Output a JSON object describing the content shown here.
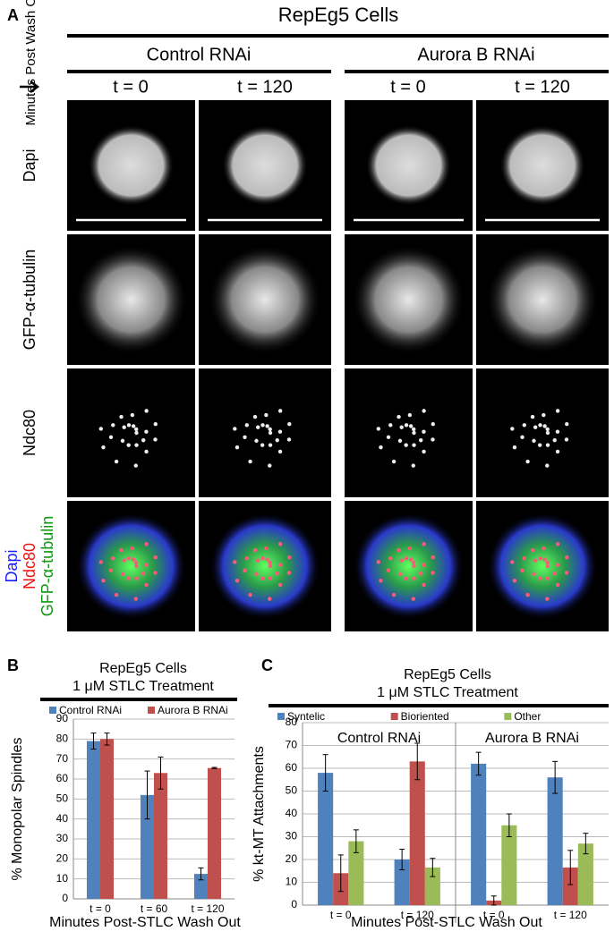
{
  "panel_a": {
    "label": "A",
    "title": "RepEg5 Cells",
    "conditions": [
      "Control RNAi",
      "Aurora B RNAi"
    ],
    "axis_label": "Minutes Post Wash Out",
    "timepoints": [
      "t = 0",
      "t = 120",
      "t = 0",
      "t = 120"
    ],
    "rows": [
      "Dapi",
      "GFP-α-tubulin",
      "Ndc80"
    ],
    "merge_labels": [
      "Dapi",
      "Ndc80",
      "GFP-α-tubulin"
    ]
  },
  "chart_data": [
    {
      "type": "bar",
      "label": "B",
      "title": "RepEg5 Cells",
      "subtitle": "1 μM STLC Treatment",
      "y_label": "% Monopolar Spindles",
      "x_label": "Minutes Post-STLC Wash Out",
      "categories": [
        "t = 0",
        "t = 60",
        "t = 120"
      ],
      "series": [
        {
          "name": "Control RNAi",
          "color": "#4f81bd",
          "values": [
            79,
            52,
            12.5
          ],
          "errors": [
            4,
            12,
            3
          ]
        },
        {
          "name": "Aurora B RNAi",
          "color": "#c0504d",
          "values": [
            80,
            63,
            65.5
          ],
          "errors": [
            3,
            8,
            0.3
          ]
        }
      ],
      "ylim": [
        0,
        90
      ],
      "yticks": [
        0,
        10,
        20,
        30,
        40,
        50,
        60,
        70,
        80,
        90
      ],
      "grid": true
    },
    {
      "type": "bar",
      "label": "C",
      "title": "RepEg5 Cells",
      "subtitle": "1 μM STLC Treatment",
      "y_label": "% kt-MT Attachments",
      "x_label": "Minutes Post-STLC Wash Out",
      "groups": [
        "Control RNAi",
        "Aurora B RNAi"
      ],
      "categories": [
        "t = 0",
        "t = 120",
        "t = 0",
        "t = 120"
      ],
      "series": [
        {
          "name": "Syntelic",
          "color": "#4f81bd",
          "values": [
            58,
            20,
            62,
            56
          ],
          "errors": [
            8,
            4.5,
            5,
            7
          ]
        },
        {
          "name": "Bioriented",
          "color": "#c0504d",
          "values": [
            14,
            63,
            2,
            16.5
          ],
          "errors": [
            8,
            8,
            2,
            7.5
          ]
        },
        {
          "name": "Other",
          "color": "#9bbb59",
          "values": [
            28,
            16.5,
            35,
            27
          ],
          "errors": [
            5,
            4,
            5,
            4.5
          ]
        }
      ],
      "ylim": [
        0,
        80
      ],
      "yticks": [
        0,
        10,
        20,
        30,
        40,
        50,
        60,
        70,
        80
      ],
      "grid": true
    }
  ]
}
